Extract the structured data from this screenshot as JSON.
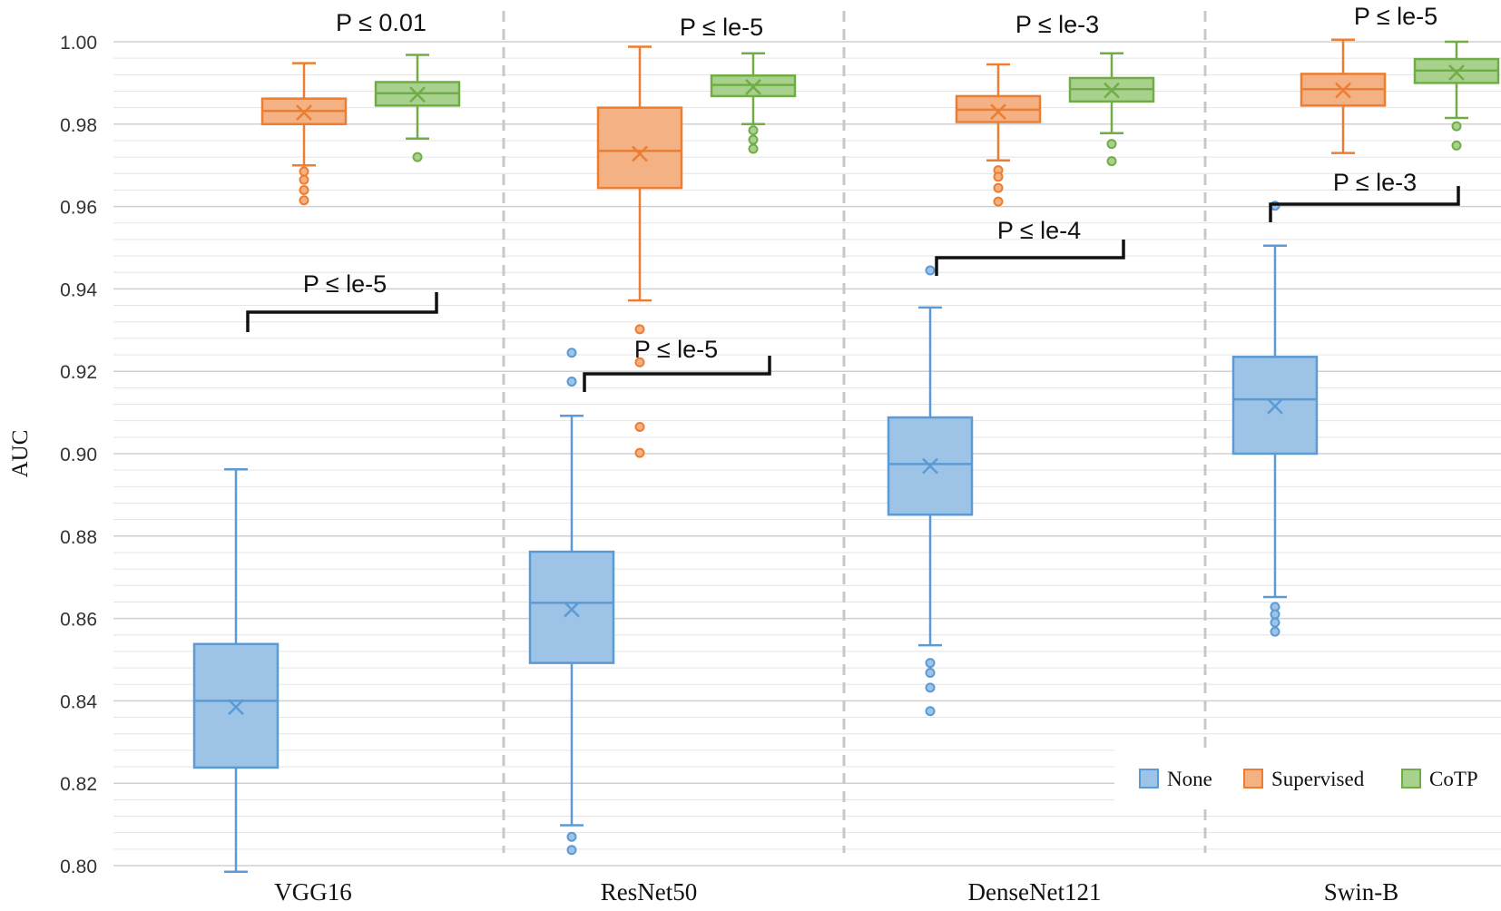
{
  "chart_data": {
    "type": "box",
    "title": "",
    "xlabel": "",
    "ylabel": "AUC",
    "ylim": [
      0.8,
      1.0
    ],
    "y_ticks": [
      "0.80",
      "0.82",
      "0.84",
      "0.86",
      "0.88",
      "0.90",
      "0.92",
      "0.94",
      "0.96",
      "0.98",
      "1.00"
    ],
    "categories": [
      "VGG16",
      "ResNet50",
      "DenseNet121",
      "Swin-B"
    ],
    "legend": {
      "position": "bottom-right",
      "entries": [
        "None",
        "Supervised",
        "CoTP"
      ]
    },
    "series": [
      {
        "name": "None",
        "color": "#5b9bd5",
        "fill": "#9dc3e6",
        "boxes": [
          {
            "category": "VGG16",
            "min": 0.7985,
            "q1": 0.8238,
            "median": 0.84,
            "q3": 0.8538,
            "max": 0.8962,
            "mean": 0.8385,
            "outliers": []
          },
          {
            "category": "ResNet50",
            "min": 0.8098,
            "q1": 0.8492,
            "median": 0.8638,
            "q3": 0.8762,
            "max": 0.9092,
            "mean": 0.8622,
            "outliers": [
              0.807,
              0.8038,
              0.9175,
              0.9245
            ]
          },
          {
            "category": "DenseNet121",
            "min": 0.8535,
            "q1": 0.8852,
            "median": 0.8975,
            "q3": 0.9088,
            "max": 0.9355,
            "mean": 0.897,
            "outliers": [
              0.8492,
              0.8468,
              0.8432,
              0.8375,
              0.9445
            ]
          },
          {
            "category": "Swin-B",
            "min": 0.8652,
            "q1": 0.9,
            "median": 0.9132,
            "q3": 0.9235,
            "max": 0.9505,
            "mean": 0.9115,
            "outliers": [
              0.8628,
              0.861,
              0.859,
              0.8568,
              0.9602
            ]
          }
        ]
      },
      {
        "name": "Supervised",
        "color": "#ed7d31",
        "fill": "#f4b183",
        "boxes": [
          {
            "category": "VGG16",
            "min": 0.97,
            "q1": 0.98,
            "median": 0.9832,
            "q3": 0.9862,
            "max": 0.9948,
            "mean": 0.9828,
            "outliers": [
              0.9685,
              0.9665,
              0.964,
              0.9615
            ]
          },
          {
            "category": "ResNet50",
            "min": 0.9372,
            "q1": 0.9645,
            "median": 0.9735,
            "q3": 0.984,
            "max": 0.9988,
            "mean": 0.9728,
            "outliers": [
              0.9302,
              0.9222,
              0.9065,
              0.9002
            ]
          },
          {
            "category": "DenseNet121",
            "min": 0.9712,
            "q1": 0.9805,
            "median": 0.9835,
            "q3": 0.9868,
            "max": 0.9945,
            "mean": 0.983,
            "outliers": [
              0.9688,
              0.9672,
              0.9645,
              0.9612
            ]
          },
          {
            "category": "Swin-B",
            "min": 0.973,
            "q1": 0.9845,
            "median": 0.9885,
            "q3": 0.9922,
            "max": 1.0005,
            "mean": 0.9882,
            "outliers": []
          }
        ]
      },
      {
        "name": "CoTP",
        "color": "#70ad47",
        "fill": "#a9d18e",
        "boxes": [
          {
            "category": "VGG16",
            "min": 0.9765,
            "q1": 0.9845,
            "median": 0.9875,
            "q3": 0.9902,
            "max": 0.9968,
            "mean": 0.9872,
            "outliers": [
              0.972
            ]
          },
          {
            "category": "ResNet50",
            "min": 0.98,
            "q1": 0.9868,
            "median": 0.9895,
            "q3": 0.9918,
            "max": 0.9972,
            "mean": 0.989,
            "outliers": [
              0.9785,
              0.9762,
              0.974
            ]
          },
          {
            "category": "DenseNet121",
            "min": 0.9778,
            "q1": 0.9855,
            "median": 0.9885,
            "q3": 0.9912,
            "max": 0.9972,
            "mean": 0.9882,
            "outliers": [
              0.9752,
              0.971
            ]
          },
          {
            "category": "Swin-B",
            "min": 0.9815,
            "q1": 0.99,
            "median": 0.993,
            "q3": 0.9958,
            "max": 1.0,
            "mean": 0.9925,
            "outliers": [
              0.9795,
              0.9748
            ]
          }
        ]
      }
    ],
    "annotations": [
      {
        "category": "VGG16",
        "text": "P ≤ 0.01",
        "compare": [
          "Supervised",
          "CoTP"
        ]
      },
      {
        "category": "VGG16",
        "text": "P ≤ le-5",
        "compare": [
          "None",
          "CoTP"
        ]
      },
      {
        "category": "ResNet50",
        "text": "P ≤ le-5",
        "compare": [
          "Supervised",
          "CoTP"
        ]
      },
      {
        "category": "ResNet50",
        "text": "P ≤ le-5",
        "compare": [
          "None",
          "CoTP"
        ]
      },
      {
        "category": "DenseNet121",
        "text": "P ≤ le-3",
        "compare": [
          "Supervised",
          "CoTP"
        ]
      },
      {
        "category": "DenseNet121",
        "text": "P ≤ le-4",
        "compare": [
          "None",
          "CoTP"
        ]
      },
      {
        "category": "Swin-B",
        "text": "P ≤ le-5",
        "compare": [
          "Supervised",
          "CoTP"
        ]
      },
      {
        "category": "Swin-B",
        "text": "P ≤ le-3",
        "compare": [
          "None",
          "CoTP"
        ]
      }
    ]
  }
}
